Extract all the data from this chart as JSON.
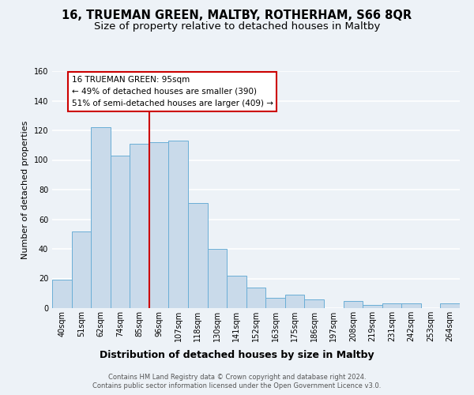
{
  "title": "16, TRUEMAN GREEN, MALTBY, ROTHERHAM, S66 8QR",
  "subtitle": "Size of property relative to detached houses in Maltby",
  "xlabel": "Distribution of detached houses by size in Maltby",
  "ylabel": "Number of detached properties",
  "bar_labels": [
    "40sqm",
    "51sqm",
    "62sqm",
    "74sqm",
    "85sqm",
    "96sqm",
    "107sqm",
    "118sqm",
    "130sqm",
    "141sqm",
    "152sqm",
    "163sqm",
    "175sqm",
    "186sqm",
    "197sqm",
    "208sqm",
    "219sqm",
    "231sqm",
    "242sqm",
    "253sqm",
    "264sqm"
  ],
  "bar_values": [
    19,
    52,
    122,
    103,
    111,
    112,
    113,
    71,
    40,
    22,
    14,
    7,
    9,
    6,
    0,
    5,
    2,
    3,
    3,
    0,
    3
  ],
  "bar_color": "#c9daea",
  "bar_edge_color": "#6aaed6",
  "vline_x_index": 5,
  "vline_color": "#cc0000",
  "ylim": [
    0,
    160
  ],
  "yticks": [
    0,
    20,
    40,
    60,
    80,
    100,
    120,
    140,
    160
  ],
  "annotation_title": "16 TRUEMAN GREEN: 95sqm",
  "annotation_line1": "← 49% of detached houses are smaller (390)",
  "annotation_line2": "51% of semi-detached houses are larger (409) →",
  "annotation_box_color": "#ffffff",
  "annotation_box_edge": "#cc0000",
  "footer_line1": "Contains HM Land Registry data © Crown copyright and database right 2024.",
  "footer_line2": "Contains public sector information licensed under the Open Government Licence v3.0.",
  "bg_color": "#edf2f7",
  "grid_color": "#ffffff",
  "title_fontsize": 10.5,
  "subtitle_fontsize": 9.5,
  "ylabel_fontsize": 8,
  "xlabel_fontsize": 9,
  "tick_fontsize": 7,
  "footer_fontsize": 6,
  "annotation_fontsize": 7.5
}
